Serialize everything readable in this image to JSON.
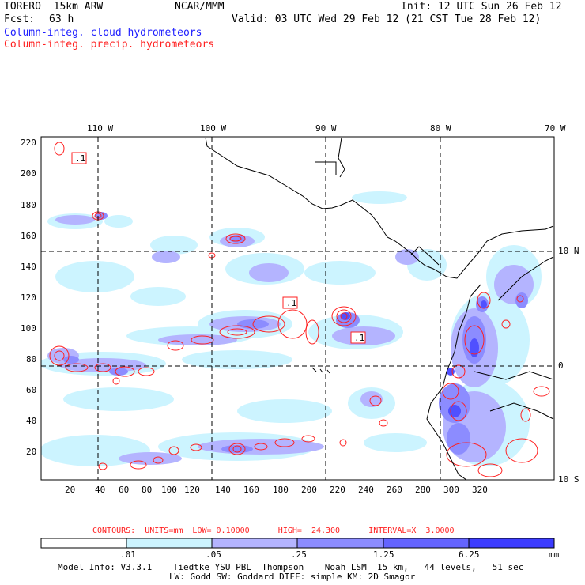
{
  "header": {
    "model": "TORERO  15km ARW",
    "org": "NCAR/MMM",
    "init": "Init: 12 UTC Sun 26 Feb 12",
    "fcst_label": "Fcst:",
    "fcst_value": "63 h",
    "valid": "Valid: 03 UTC Wed 29 Feb 12 (21 CST Tue 28 Feb 12)",
    "field1": "Column-integ. cloud hydrometeors",
    "field2": "Column-integ. precip. hydrometeors"
  },
  "colors": {
    "field1": "#2020ff",
    "field2": "#ff2020",
    "coast": "#000000"
  },
  "map": {
    "lon_labels": [
      "110 W",
      "100 W",
      "90 W",
      "80 W",
      "70 W"
    ],
    "lat_labels": [
      "10 N",
      "0",
      "10 S"
    ],
    "y_ticks": [
      "220",
      "200",
      "180",
      "160",
      "140",
      "120",
      "100",
      "80",
      "60",
      "40",
      "20"
    ],
    "x_ticks": [
      "20",
      "40",
      "60",
      "80",
      "100",
      "120",
      "140",
      "160",
      "180",
      "200",
      "220",
      "240",
      "260",
      "280",
      "300",
      "320"
    ],
    "boxed_labels": [
      ".1",
      ".1",
      ".1"
    ]
  },
  "contour_info": {
    "text": "CONTOURS:  UNITS=mm  LOW= 0.10000      HIGH=  24.300      INTERVAL=X  3.0000"
  },
  "colorbar": {
    "tick_labels": [
      ".01",
      ".05",
      ".25",
      "1.25",
      "6.25"
    ],
    "units": "mm",
    "levels": [
      "#ffffff",
      "#ccf4ff",
      "#b4b4ff",
      "#8c8cff",
      "#6464ff",
      "#3c3cff"
    ]
  },
  "footer": {
    "line1": "Model Info: V3.3.1    Tiedtke YSU PBL  Thompson    Noah LSM  15 km,   44 levels,   51 sec",
    "line2": "LW: Godd SW: Goddard DIFF: simple KM: 2D Smagor"
  }
}
